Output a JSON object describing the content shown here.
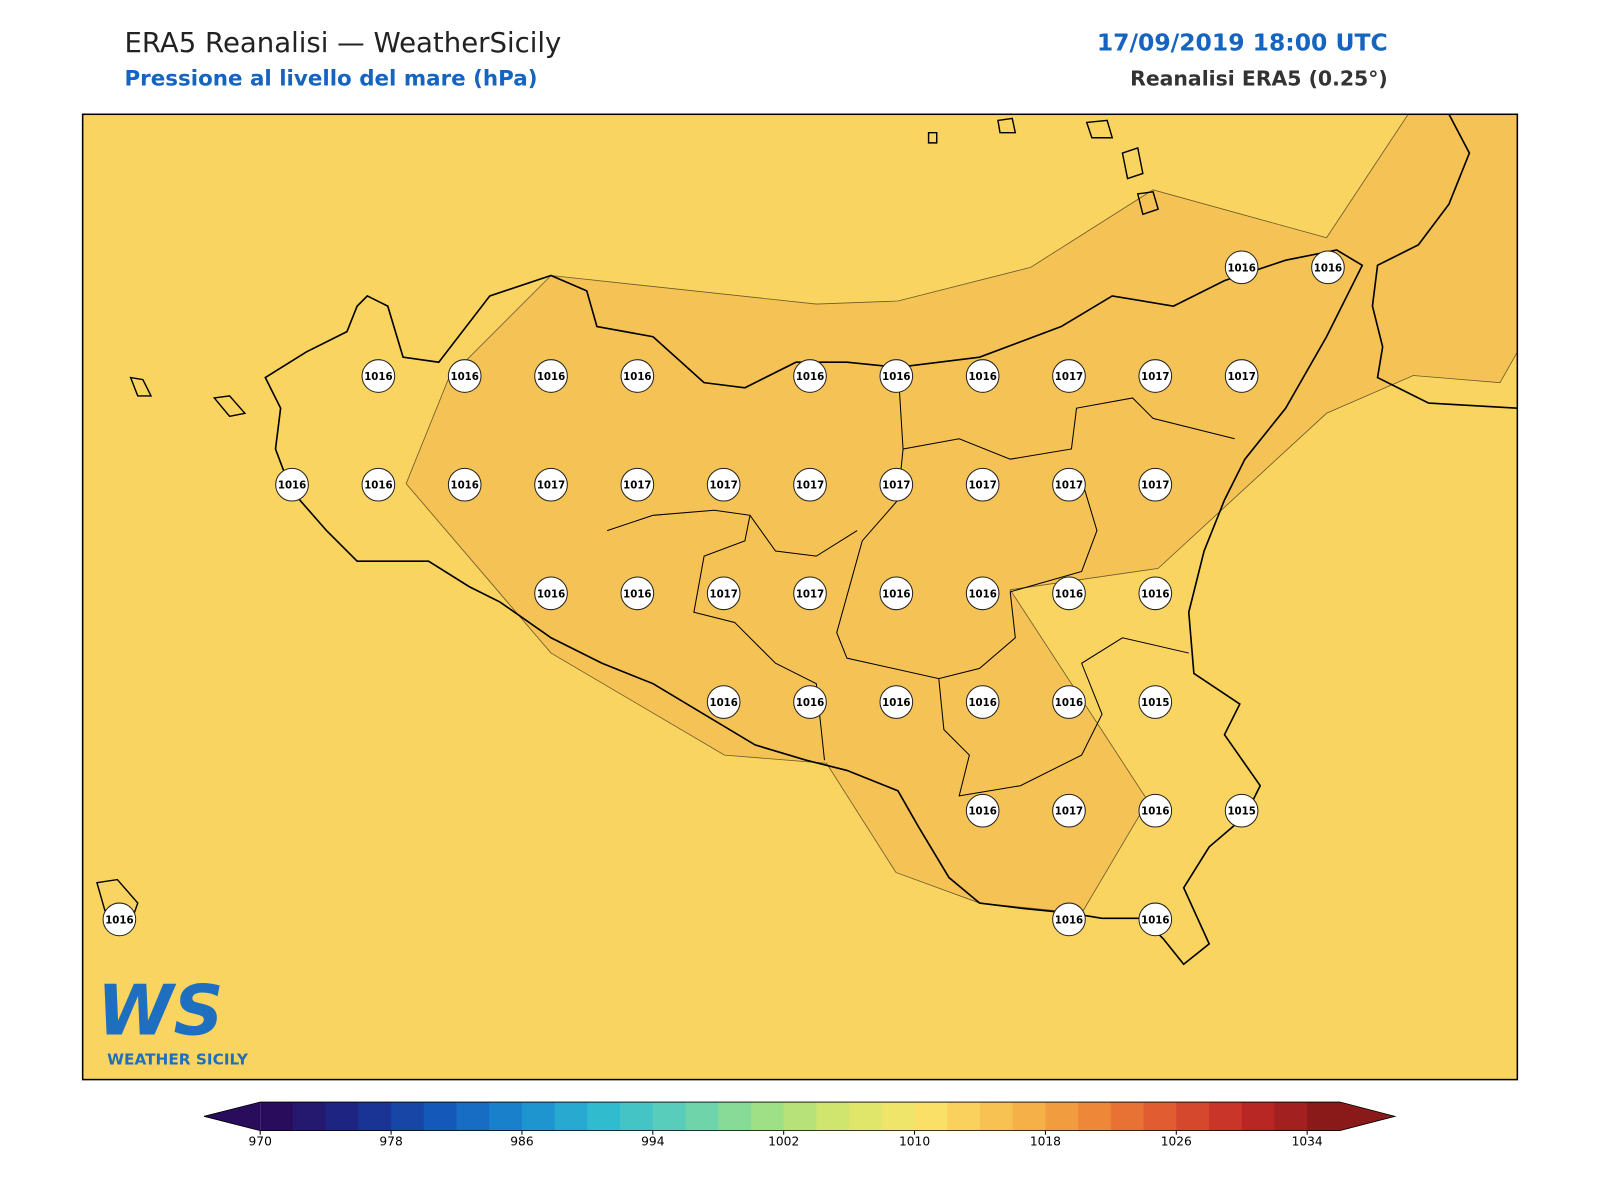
{
  "header": {
    "title": "ERA5 Reanalisi — WeatherSicily",
    "subtitle": "Pressione al livello del mare (hPa)",
    "datetime": "17/09/2019 18:00 UTC",
    "source": "Reanalisi ERA5 (0.25°)"
  },
  "map": {
    "pressure_labels": [
      1016,
      1016,
      1016,
      1016,
      1016,
      1016,
      1016,
      1016,
      1016,
      1017,
      1017,
      1017,
      1016,
      1016,
      1016,
      1017,
      1017,
      1017,
      1017,
      1017,
      1017,
      1017,
      1017,
      1016,
      1016,
      1017,
      1017,
      1016,
      1016,
      1016,
      1016,
      1016,
      1016,
      1016,
      1016,
      1016,
      1015,
      1016,
      1017,
      1016,
      1015,
      1016,
      1016,
      1016
    ]
  },
  "logo": {
    "mark": "WS",
    "text": "WEATHER SICILY"
  },
  "colorbar": {
    "ticks": [
      970,
      978,
      986,
      994,
      1002,
      1010,
      1018,
      1026,
      1034
    ],
    "step": 2
  }
}
